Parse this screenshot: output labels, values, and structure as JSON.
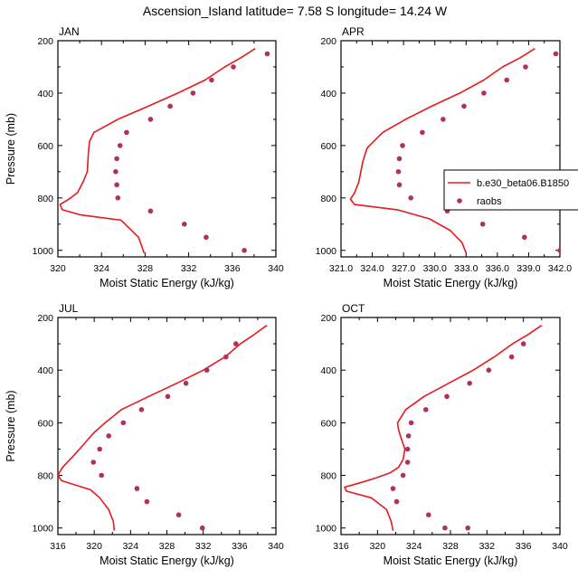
{
  "figure": {
    "title": "Ascension_Island  latitude= 7.58 S longitude= 14.24 W",
    "xlabel": "Moist Static Energy (kJ/kg)",
    "ylabel": "Pressure (mb)"
  },
  "legend": {
    "model_label": "b.e30_beta06.B1850",
    "obs_label": "raobs"
  },
  "colors": {
    "model": "#e8191c",
    "obs": "#b2305a",
    "axis": "#000000"
  },
  "chart_data": [
    {
      "type": "line",
      "title": "JAN",
      "xlabel": "Moist Static Energy (kJ/kg)",
      "ylabel": "Pressure (mb)",
      "xlim": [
        320,
        340
      ],
      "ylim": [
        1025,
        200
      ],
      "xticks": [
        320,
        324,
        328,
        332,
        336,
        340
      ],
      "xtick_labels": [
        "320",
        "324",
        "328",
        "332",
        "336",
        "340"
      ],
      "yticks": [
        200,
        400,
        600,
        800,
        1000
      ],
      "ytick_labels": [
        "200",
        "400",
        "600",
        "800",
        "1000"
      ],
      "series": [
        {
          "name": "b.e30_beta06.B1850",
          "type": "line",
          "x": [
            338.1,
            336.8,
            335.3,
            333.5,
            331.0,
            328.3,
            325.5,
            323.3,
            322.9,
            322.8,
            322.7,
            322.3,
            321.8,
            321.0,
            320.2,
            320.4,
            322.1,
            325.8,
            327.4,
            327.7,
            327.9
          ],
          "y": [
            230,
            265,
            300,
            350,
            400,
            450,
            500,
            550,
            585,
            630,
            700,
            740,
            780,
            805,
            825,
            845,
            865,
            885,
            950,
            985,
            1010
          ]
        },
        {
          "name": "raobs",
          "type": "scatter",
          "x": [
            339.2,
            336.1,
            334.1,
            332.4,
            330.3,
            328.5,
            326.3,
            325.7,
            325.4,
            325.3,
            325.4,
            325.5,
            328.5,
            331.6,
            333.6,
            337.1
          ],
          "y": [
            250,
            300,
            350,
            400,
            450,
            500,
            550,
            600,
            650,
            700,
            750,
            800,
            850,
            900,
            950,
            1000
          ]
        }
      ]
    },
    {
      "type": "line",
      "title": "APR",
      "xlabel": "Moist Static Energy (kJ/kg)",
      "ylabel": "",
      "xlim": [
        321,
        342
      ],
      "ylim": [
        1025,
        200
      ],
      "xticks": [
        321,
        324,
        327,
        330,
        333,
        336,
        339,
        342
      ],
      "xtick_labels": [
        "321.0",
        "324.0",
        "327.0",
        "330.0",
        "333.0",
        "336.0",
        "339.0",
        "342.0"
      ],
      "yticks": [
        200,
        400,
        600,
        800,
        1000
      ],
      "ytick_labels": [
        "200",
        "400",
        "600",
        "800",
        "1000"
      ],
      "series": [
        {
          "name": "b.e30_beta06.B1850",
          "type": "line",
          "x": [
            339.6,
            338.2,
            336.5,
            334.7,
            332.4,
            329.7,
            327.2,
            325.0,
            323.5,
            323.1,
            322.9,
            322.7,
            322.3,
            321.9,
            322.3,
            326.4,
            329.5,
            331.5,
            332.6,
            333.0
          ],
          "y": [
            230,
            265,
            300,
            350,
            400,
            450,
            500,
            550,
            610,
            660,
            700,
            740,
            780,
            805,
            825,
            845,
            880,
            925,
            970,
            1010
          ]
        },
        {
          "name": "raobs",
          "type": "scatter",
          "x": [
            341.6,
            338.7,
            336.9,
            334.7,
            332.8,
            330.8,
            328.8,
            326.9,
            326.6,
            326.5,
            326.6,
            327.7,
            331.2,
            334.6,
            338.6,
            342.0
          ],
          "y": [
            250,
            300,
            350,
            400,
            450,
            500,
            550,
            600,
            650,
            700,
            750,
            800,
            850,
            900,
            950,
            1000
          ]
        }
      ]
    },
    {
      "type": "line",
      "title": "JUL",
      "xlabel": "Moist Static Energy (kJ/kg)",
      "ylabel": "Pressure (mb)",
      "xlim": [
        316,
        340
      ],
      "ylim": [
        1025,
        200
      ],
      "xticks": [
        316,
        320,
        324,
        328,
        332,
        336,
        340
      ],
      "xtick_labels": [
        "316",
        "320",
        "324",
        "328",
        "332",
        "336",
        "340"
      ],
      "yticks": [
        200,
        400,
        600,
        800,
        1000
      ],
      "ytick_labels": [
        "200",
        "400",
        "600",
        "800",
        "1000"
      ],
      "series": [
        {
          "name": "b.e30_beta06.B1850",
          "type": "line",
          "x": [
            339.0,
            337.6,
            336.1,
            334.4,
            332.0,
            329.1,
            326.0,
            323.0,
            321.2,
            319.9,
            318.9,
            317.6,
            316.5,
            316.0,
            316.4,
            319.6,
            320.6,
            321.6,
            322.1,
            322.2
          ],
          "y": [
            230,
            265,
            300,
            350,
            400,
            450,
            500,
            550,
            600,
            640,
            680,
            730,
            770,
            800,
            820,
            855,
            885,
            930,
            975,
            1010
          ]
        },
        {
          "name": "raobs",
          "type": "scatter",
          "x": [
            335.6,
            334.5,
            332.4,
            330.1,
            328.1,
            325.2,
            323.2,
            321.6,
            320.6,
            319.9,
            320.8,
            324.7,
            325.8,
            329.3,
            331.9
          ],
          "y": [
            300,
            350,
            400,
            450,
            500,
            550,
            600,
            650,
            700,
            750,
            800,
            850,
            900,
            950,
            1000
          ]
        }
      ]
    },
    {
      "type": "line",
      "title": "OCT",
      "xlabel": "Moist Static Energy (kJ/kg)",
      "ylabel": "",
      "xlim": [
        316,
        340
      ],
      "ylim": [
        1025,
        200
      ],
      "xticks": [
        316,
        320,
        324,
        328,
        332,
        336,
        340
      ],
      "xtick_labels": [
        "316",
        "320",
        "324",
        "328",
        "332",
        "336",
        "340"
      ],
      "yticks": [
        200,
        400,
        600,
        800,
        1000
      ],
      "ytick_labels": [
        "200",
        "400",
        "600",
        "800",
        "1000"
      ],
      "series": [
        {
          "name": "b.e30_beta06.B1850",
          "type": "line",
          "x": [
            338.0,
            336.5,
            334.8,
            332.8,
            330.5,
            327.8,
            325.1,
            323.1,
            322.2,
            322.3,
            322.6,
            323.0,
            322.8,
            322.3,
            321.4,
            319.8,
            317.9,
            316.4,
            316.6,
            319.3,
            321.0,
            321.5,
            321.7
          ],
          "y": [
            230,
            265,
            300,
            350,
            400,
            450,
            500,
            550,
            600,
            625,
            660,
            700,
            740,
            770,
            790,
            810,
            830,
            845,
            860,
            885,
            930,
            975,
            1010
          ]
        },
        {
          "name": "raobs",
          "type": "scatter",
          "x": [
            336.0,
            334.7,
            332.2,
            330.1,
            327.6,
            325.3,
            323.7,
            323.4,
            323.3,
            323.3,
            322.8,
            321.7,
            322.1,
            325.6,
            327.4,
            329.9
          ],
          "y": [
            300,
            350,
            400,
            450,
            500,
            550,
            600,
            650,
            700,
            750,
            800,
            850,
            900,
            950,
            1000,
            1000
          ]
        }
      ]
    }
  ]
}
